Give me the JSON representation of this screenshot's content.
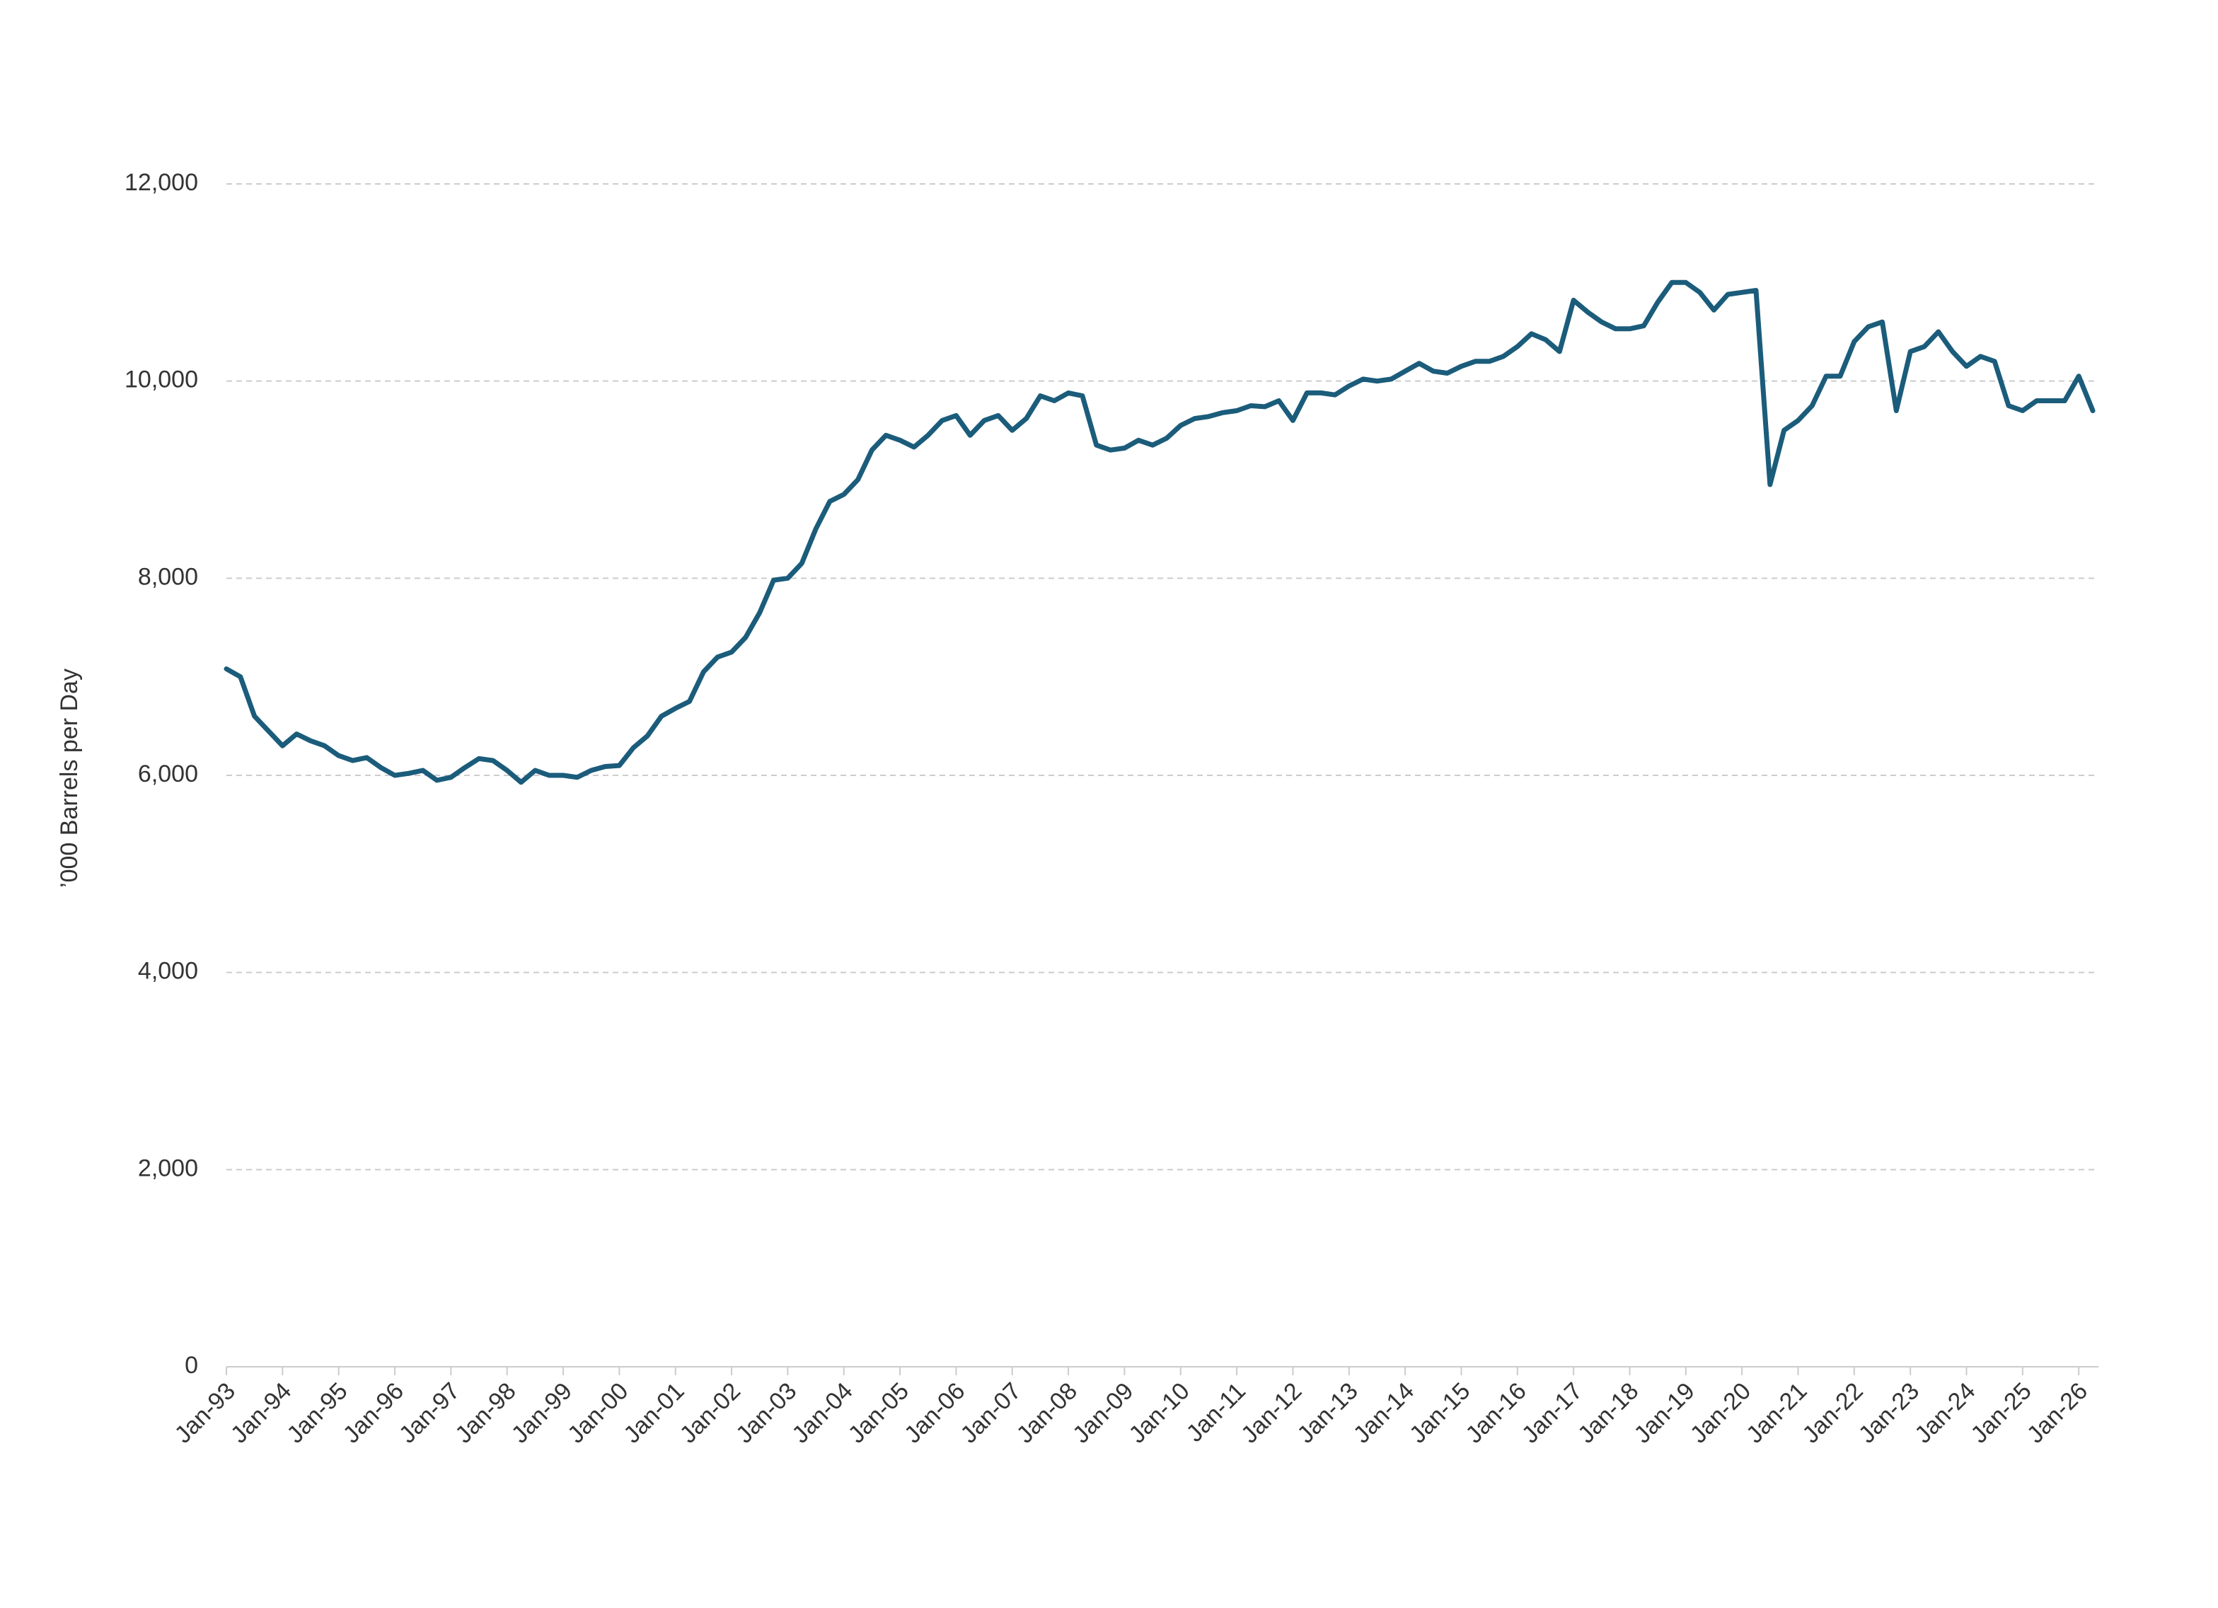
{
  "chart_data": {
    "type": "line",
    "y_label": "’000 Barrels per Day",
    "categories": [
      "Jan-93",
      null,
      null,
      null,
      "Jan-94",
      null,
      null,
      null,
      "Jan-95",
      null,
      null,
      null,
      "Jan-96",
      null,
      null,
      null,
      "Jan-97",
      null,
      null,
      null,
      "Jan-98",
      null,
      null,
      null,
      "Jan-99",
      null,
      null,
      null,
      "Jan-00",
      null,
      null,
      null,
      "Jan-01",
      null,
      null,
      null,
      "Jan-02",
      null,
      null,
      null,
      "Jan-03",
      null,
      null,
      null,
      "Jan-04",
      null,
      null,
      null,
      "Jan-05",
      null,
      null,
      null,
      "Jan-06",
      null,
      null,
      null,
      "Jan-07",
      null,
      null,
      null,
      "Jan-08",
      null,
      null,
      null,
      "Jan-09",
      null,
      null,
      null,
      "Jan-10",
      null,
      null,
      null,
      "Jan-11",
      null,
      null,
      null,
      "Jan-12",
      null,
      null,
      null,
      "Jan-13",
      null,
      null,
      null,
      "Jan-14",
      null,
      null,
      null,
      "Jan-15",
      null,
      null,
      null,
      "Jan-16",
      null,
      null,
      null,
      "Jan-17",
      null,
      null,
      null,
      "Jan-18",
      null,
      null,
      null,
      "Jan-19",
      null,
      null,
      null,
      "Jan-20",
      null,
      null,
      null,
      "Jan-21",
      null,
      null,
      null,
      "Jan-22",
      null,
      null,
      null,
      "Jan-23",
      null,
      null,
      null,
      "Jan-24",
      null,
      null,
      null,
      "Jan-25",
      null,
      null,
      null,
      "Jan-26",
      null
    ],
    "values": [
      7080,
      7000,
      6600,
      6450,
      6300,
      6420,
      6350,
      6300,
      6200,
      6150,
      6180,
      6080,
      6000,
      6020,
      6050,
      5950,
      5980,
      6080,
      6170,
      6150,
      6050,
      5930,
      6050,
      6000,
      6000,
      5980,
      6050,
      6090,
      6100,
      6280,
      6400,
      6600,
      6680,
      6750,
      7050,
      7200,
      7250,
      7400,
      7650,
      7980,
      8000,
      8150,
      8500,
      8780,
      8850,
      9000,
      9300,
      9450,
      9400,
      9330,
      9450,
      9600,
      9650,
      9450,
      9600,
      9650,
      9500,
      9620,
      9850,
      9800,
      9880,
      9850,
      9350,
      9300,
      9320,
      9400,
      9350,
      9420,
      9550,
      9620,
      9640,
      9680,
      9700,
      9750,
      9740,
      9800,
      9600,
      9880,
      9880,
      9860,
      9950,
      10020,
      10000,
      10020,
      10100,
      10180,
      10100,
      10080,
      10150,
      10200,
      10200,
      10250,
      10350,
      10480,
      10420,
      10300,
      10820,
      10700,
      10600,
      10530,
      10530,
      10560,
      10800,
      11000,
      11000,
      10900,
      10720,
      10880,
      10900,
      10920,
      8950,
      9500,
      9600,
      9750,
      10050,
      10050,
      10400,
      10550,
      10600,
      9700,
      10300,
      10350,
      10500,
      10300,
      10150,
      10250,
      10200,
      9750,
      9700,
      9800,
      9800,
      9800,
      10050,
      9700
    ],
    "color": "#1b5c7b",
    "ylim": [
      0,
      12000
    ],
    "yticks": [
      0,
      {
        "value": 2000,
        "label": "2,000"
      },
      {
        "value": 4000,
        "label": "4,000"
      },
      {
        "value": 6000,
        "label": "6,000"
      },
      {
        "value": 8000,
        "label": "8,000"
      },
      {
        "value": 10000,
        "label": "10,000"
      },
      {
        "value": 12000,
        "label": "12,000"
      }
    ],
    "grid": true
  }
}
